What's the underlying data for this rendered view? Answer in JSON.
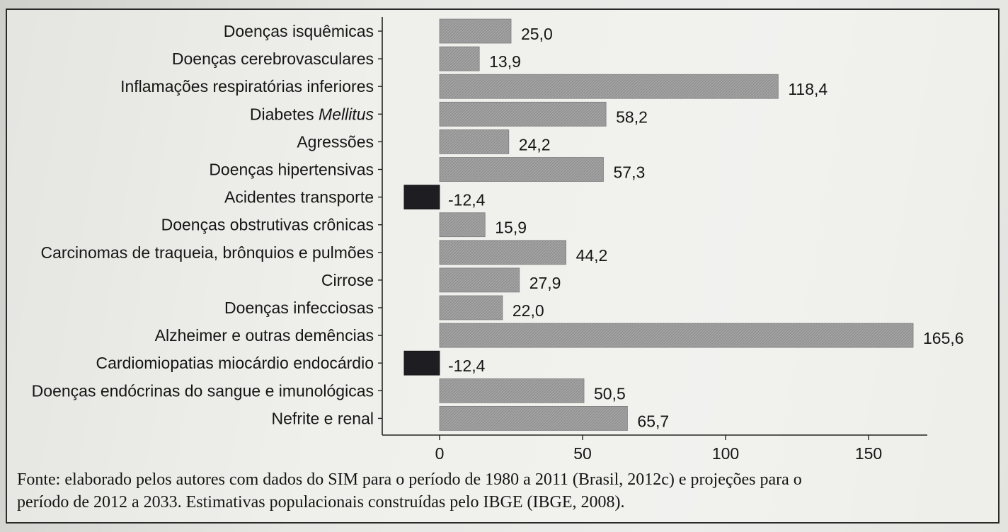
{
  "chart_data": {
    "type": "bar",
    "orientation": "horizontal",
    "categories": [
      "Doenças isquêmicas",
      "Doenças cerebrovasculares",
      "Inflamações respiratórias inferiores",
      "Diabetes Mellitus",
      "Agressões",
      "Doenças hipertensivas",
      "Acidentes transporte",
      "Doenças obstrutivas crônicas",
      "Carcinomas de traqueia, brônquios e pulmões",
      "Cirrose",
      "Doenças infecciosas",
      "Alzheimer e outras demências",
      "Cardiomiopatias miocárdio endocárdio",
      "Doenças endócrinas do sangue e imunológicas",
      "Nefrite e renal"
    ],
    "values": [
      25.0,
      13.9,
      118.4,
      58.2,
      24.2,
      57.3,
      -12.4,
      15.9,
      44.2,
      27.9,
      22.0,
      165.6,
      -12.4,
      50.5,
      65.7
    ],
    "value_labels": [
      "25,0",
      "13,9",
      "118,4",
      "58,2",
      "24,2",
      "57,3",
      "-12,4",
      "15,9",
      "44,2",
      "27,9",
      "22,0",
      "165,6",
      "-12,4",
      "50,5",
      "65,7"
    ],
    "xticks": [
      0,
      50,
      100,
      150
    ],
    "xlim": [
      -20,
      175
    ],
    "grid": false,
    "title": "",
    "xlabel": "",
    "ylabel": "",
    "colors": {
      "positive": "#9a9a9a",
      "negative": "#1e1e22"
    }
  },
  "caption": {
    "line1": "Fonte: elaborado pelos autores com dados do SIM para o período de 1980 a 2011 (Brasil, 2012c) e projeções para o",
    "line2": "período de 2012 a 2033. Estimativas populacionais construídas pelo IBGE (IBGE, 2008)."
  }
}
